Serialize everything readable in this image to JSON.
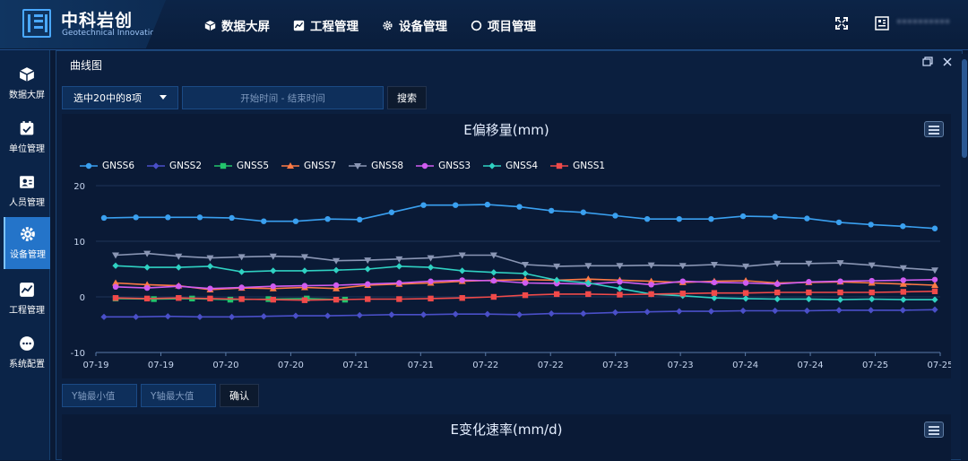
{
  "header": {
    "brand": "中科岩创",
    "brand_sub": "Geotechnical Innovation",
    "nav": [
      {
        "label": "数据大屏",
        "icon": "cube-icon"
      },
      {
        "label": "工程管理",
        "icon": "chart-icon"
      },
      {
        "label": "设备管理",
        "icon": "gear-icon"
      },
      {
        "label": "项目管理",
        "icon": "circle-icon"
      }
    ],
    "user": "**********"
  },
  "sidebar": {
    "items": [
      {
        "label": "数据大屏",
        "icon": "cube-icon"
      },
      {
        "label": "单位管理",
        "icon": "calendar-check-icon"
      },
      {
        "label": "人员管理",
        "icon": "user-card-icon"
      },
      {
        "label": "设备管理",
        "icon": "gear-icon",
        "active": true
      },
      {
        "label": "工程管理",
        "icon": "chart-icon"
      },
      {
        "label": "系统配置",
        "icon": "more-icon"
      }
    ]
  },
  "panel": {
    "title": "曲线图",
    "select_value": "选中20中的8项",
    "date_placeholder": "开始时间 - 结束时间",
    "search_label": "搜索",
    "ymin_placeholder": "Y轴最小值",
    "ymax_placeholder": "Y轴最大值",
    "confirm_label": "确认",
    "chart2_title": "E变化速率(mm/d)"
  },
  "chart_data": {
    "type": "line",
    "title": "E偏移量(mm)",
    "ylim": [
      -10,
      20
    ],
    "yticks": [
      -10,
      0,
      10,
      20
    ],
    "xticks": [
      "07-19",
      "07-19",
      "07-20",
      "07-20",
      "07-21",
      "07-21",
      "07-22",
      "07-22",
      "07-23",
      "07-23",
      "07-24",
      "07-24",
      "07-25",
      "07-25"
    ],
    "grid": true,
    "legend": "top-left",
    "series": [
      {
        "name": "GNSS6",
        "color": "#3aa0f0",
        "marker": "circle",
        "values": [
          14.2,
          14.3,
          14.3,
          14.3,
          14.2,
          13.6,
          13.6,
          14.0,
          13.9,
          15.2,
          16.5,
          16.5,
          16.6,
          16.2,
          15.5,
          15.2,
          14.6,
          14.0,
          14.0,
          14.0,
          14.5,
          14.4,
          14.1,
          13.4,
          13.0,
          12.7,
          12.3
        ]
      },
      {
        "name": "GNSS2",
        "color": "#4a4fc8",
        "marker": "diamond",
        "values": [
          -3.6,
          -3.6,
          -3.5,
          -3.6,
          -3.6,
          -3.5,
          -3.4,
          -3.4,
          -3.3,
          -3.2,
          -3.2,
          -3.1,
          -3.1,
          -3.2,
          -3.0,
          -3.0,
          -2.8,
          -2.7,
          -2.6,
          -2.6,
          -2.5,
          -2.5,
          -2.5,
          -2.4,
          -2.4,
          -2.4,
          -2.3
        ]
      },
      {
        "name": "GNSS5",
        "color": "#23c46c",
        "marker": "square",
        "values": [
          -0.3,
          -0.4,
          -0.3,
          -0.5,
          -0.4,
          -0.3,
          -0.5
        ]
      },
      {
        "name": "GNSS7",
        "color": "#ff7a45",
        "marker": "triangle",
        "values": [
          2.5,
          2.2,
          2.0,
          1.3,
          1.6,
          1.5,
          1.7,
          1.5,
          2.1,
          2.3,
          2.5,
          2.8,
          3.0,
          3.1,
          3.0,
          3.2,
          3.0,
          2.8,
          2.6,
          2.8,
          2.9,
          2.5,
          2.6,
          2.7,
          2.5,
          2.3,
          2.1
        ]
      },
      {
        "name": "GNSS8",
        "color": "#8a96b4",
        "marker": "triangle-down",
        "values": [
          7.5,
          7.8,
          7.3,
          7.0,
          7.2,
          7.3,
          7.2,
          6.5,
          6.6,
          6.8,
          7.0,
          7.5,
          7.5,
          5.8,
          5.5,
          5.6,
          5.6,
          5.7,
          5.6,
          5.8,
          5.5,
          6.0,
          6.0,
          6.1,
          5.7,
          5.2,
          4.8
        ]
      },
      {
        "name": "GNSS3",
        "color": "#d05cf0",
        "marker": "circle",
        "values": [
          1.8,
          1.6,
          1.9,
          1.5,
          1.7,
          1.9,
          2.0,
          2.1,
          2.3,
          2.5,
          2.8,
          3.0,
          2.9,
          2.5,
          2.4,
          2.3,
          2.7,
          2.2,
          2.8,
          2.6,
          2.5,
          2.3,
          2.7,
          2.8,
          2.9,
          3.0,
          3.1
        ]
      },
      {
        "name": "GNSS4",
        "color": "#2fd1c2",
        "marker": "diamond",
        "values": [
          5.6,
          5.3,
          5.3,
          5.5,
          4.5,
          4.7,
          4.7,
          4.8,
          5.0,
          5.5,
          5.3,
          4.7,
          4.4,
          4.2,
          3.0,
          2.5,
          1.5,
          0.5,
          0.2,
          -0.2,
          -0.3,
          -0.4,
          -0.4,
          -0.5,
          -0.4,
          -0.5,
          -0.5
        ]
      },
      {
        "name": "GNSS1",
        "color": "#f04a4a",
        "marker": "square",
        "values": [
          -0.2,
          -0.3,
          -0.2,
          -0.3,
          -0.4,
          -0.5,
          -0.6,
          -0.5,
          -0.4,
          -0.4,
          -0.3,
          -0.2,
          0.0,
          0.3,
          0.5,
          0.5,
          0.4,
          0.5,
          0.6,
          0.7,
          0.7,
          0.8,
          0.8,
          0.8,
          0.8,
          0.9,
          1.0
        ]
      }
    ]
  }
}
